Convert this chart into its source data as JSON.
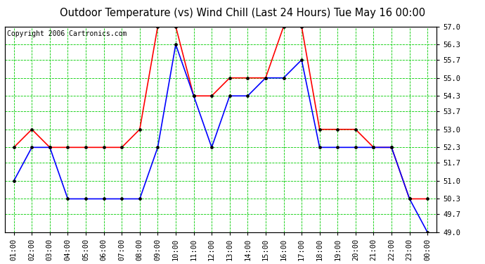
{
  "title": "Outdoor Temperature (vs) Wind Chill (Last 24 Hours) Tue May 16 00:00",
  "copyright": "Copyright 2006 Cartronics.com",
  "x_labels": [
    "01:00",
    "02:00",
    "03:00",
    "04:00",
    "05:00",
    "06:00",
    "07:00",
    "08:00",
    "09:00",
    "10:00",
    "11:00",
    "12:00",
    "13:00",
    "14:00",
    "15:00",
    "16:00",
    "17:00",
    "18:00",
    "19:00",
    "20:00",
    "21:00",
    "22:00",
    "23:00",
    "00:00"
  ],
  "temp_red": [
    52.3,
    53.0,
    52.3,
    52.3,
    52.3,
    52.3,
    52.3,
    53.0,
    57.0,
    57.0,
    54.3,
    54.3,
    55.0,
    55.0,
    55.0,
    57.0,
    57.0,
    53.0,
    53.0,
    53.0,
    52.3,
    52.3,
    50.3,
    50.3
  ],
  "temp_blue": [
    51.0,
    52.3,
    52.3,
    50.3,
    50.3,
    50.3,
    50.3,
    50.3,
    52.3,
    56.3,
    54.3,
    52.3,
    54.3,
    54.3,
    55.0,
    55.0,
    55.7,
    52.3,
    52.3,
    52.3,
    52.3,
    52.3,
    50.3,
    49.0
  ],
  "ylim": [
    49.0,
    57.0
  ],
  "yticks": [
    49.0,
    49.7,
    50.3,
    51.0,
    51.7,
    52.3,
    53.0,
    53.7,
    54.3,
    55.0,
    55.7,
    56.3,
    57.0
  ],
  "red_color": "#ff0000",
  "blue_color": "#0000ff",
  "green_grid_color": "#00cc00",
  "bg_color": "#ffffff",
  "plot_bg_color": "#ffffff",
  "title_fontsize": 10.5,
  "copyright_fontsize": 7,
  "tick_fontsize": 7.5
}
